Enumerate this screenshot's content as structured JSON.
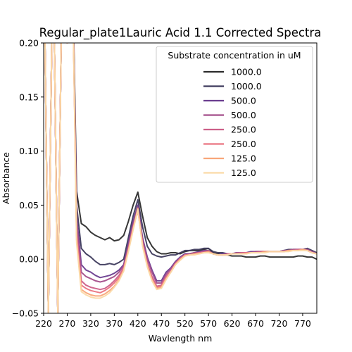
{
  "chart_data": {
    "type": "line",
    "title": "Regular_plate1Lauric Acid 1.1 Corrected Spectra",
    "xlabel": "Wavlength nm",
    "ylabel": "Absorbance",
    "xlim": [
      220,
      800
    ],
    "ylim": [
      -0.05,
      0.2
    ],
    "x_ticks": [
      220,
      270,
      320,
      370,
      420,
      470,
      520,
      570,
      620,
      670,
      720,
      770
    ],
    "y_ticks": [
      -0.05,
      0.0,
      0.05,
      0.1,
      0.15,
      0.2
    ],
    "y_tick_labels": [
      "−0.05",
      "0.00",
      "0.05",
      "0.10",
      "0.15",
      "0.20"
    ],
    "grid": false,
    "legend": {
      "title": "Substrate concentration in uM",
      "placement": "top-right"
    },
    "shared_x": [
      220,
      230,
      240,
      250,
      260,
      270,
      280,
      290,
      300,
      310,
      320,
      330,
      340,
      350,
      360,
      370,
      380,
      390,
      400,
      410,
      420,
      430,
      440,
      450,
      460,
      470,
      480,
      490,
      500,
      510,
      520,
      530,
      540,
      550,
      560,
      570,
      580,
      590,
      600,
      610,
      620,
      630,
      640,
      650,
      660,
      670,
      680,
      690,
      700,
      710,
      720,
      730,
      740,
      750,
      760,
      770,
      780,
      790,
      800
    ],
    "series": [
      {
        "name": "1000.0",
        "color": "#2b2b2b",
        "values": [
          0.3,
          -0.05,
          0.3,
          -0.05,
          0.3,
          0.2,
          0.3,
          0.063,
          0.033,
          0.03,
          0.025,
          0.022,
          0.02,
          0.018,
          0.02,
          0.017,
          0.018,
          0.022,
          0.035,
          0.05,
          0.062,
          0.04,
          0.02,
          0.012,
          0.007,
          0.005,
          0.005,
          0.006,
          0.006,
          0.005,
          0.007,
          0.008,
          0.008,
          0.008,
          0.009,
          0.01,
          0.006,
          0.005,
          0.004,
          0.004,
          0.003,
          0.003,
          0.003,
          0.002,
          0.002,
          0.002,
          0.003,
          0.003,
          0.002,
          0.002,
          0.002,
          0.002,
          0.002,
          0.002,
          0.003,
          0.003,
          0.002,
          0.002,
          0.0
        ]
      },
      {
        "name": "1000.0",
        "color": "#3d3a5c",
        "values": [
          0.3,
          -0.05,
          0.3,
          -0.05,
          0.3,
          0.2,
          0.3,
          0.05,
          0.01,
          0.005,
          0.002,
          -0.002,
          -0.005,
          -0.005,
          -0.004,
          -0.005,
          -0.003,
          0.0,
          0.02,
          0.04,
          0.055,
          0.03,
          0.012,
          0.005,
          0.003,
          0.002,
          0.003,
          0.004,
          0.004,
          0.006,
          0.008,
          0.008,
          0.009,
          0.009,
          0.01,
          0.01,
          0.007,
          0.006,
          0.006,
          0.005,
          0.005,
          0.006,
          0.006,
          0.006,
          0.006,
          0.007,
          0.007,
          0.007,
          0.007,
          0.007,
          0.007,
          0.008,
          0.009,
          0.009,
          0.009,
          0.009,
          0.01,
          0.008,
          0.006
        ]
      },
      {
        "name": "500.0",
        "color": "#6a3d8f",
        "values": [
          0.3,
          -0.05,
          0.3,
          -0.05,
          0.3,
          0.2,
          0.3,
          0.04,
          -0.005,
          -0.01,
          -0.012,
          -0.015,
          -0.017,
          -0.016,
          -0.015,
          -0.013,
          -0.01,
          -0.005,
          0.015,
          0.035,
          0.05,
          0.02,
          0.002,
          -0.01,
          -0.02,
          -0.02,
          -0.012,
          -0.008,
          -0.002,
          0.002,
          0.005,
          0.005,
          0.006,
          0.007,
          0.008,
          0.008,
          0.005,
          0.004,
          0.005,
          0.005,
          0.005,
          0.006,
          0.006,
          0.006,
          0.007,
          0.007,
          0.007,
          0.007,
          0.007,
          0.007,
          0.007,
          0.008,
          0.008,
          0.009,
          0.009,
          0.009,
          0.009,
          0.007,
          0.005
        ]
      },
      {
        "name": "500.0",
        "color": "#a34d8a",
        "values": [
          0.3,
          -0.05,
          0.3,
          -0.05,
          0.3,
          0.2,
          0.3,
          0.035,
          -0.012,
          -0.016,
          -0.018,
          -0.02,
          -0.021,
          -0.02,
          -0.018,
          -0.016,
          -0.012,
          -0.006,
          0.012,
          0.032,
          0.048,
          0.018,
          0.0,
          -0.012,
          -0.022,
          -0.022,
          -0.014,
          -0.009,
          -0.003,
          0.001,
          0.004,
          0.005,
          0.006,
          0.006,
          0.007,
          0.008,
          0.005,
          0.004,
          0.004,
          0.005,
          0.005,
          0.006,
          0.006,
          0.006,
          0.006,
          0.007,
          0.007,
          0.007,
          0.007,
          0.007,
          0.007,
          0.008,
          0.008,
          0.009,
          0.009,
          0.009,
          0.009,
          0.007,
          0.005
        ]
      },
      {
        "name": "250.0",
        "color": "#cc5f89",
        "values": [
          0.3,
          -0.05,
          0.3,
          -0.05,
          0.3,
          0.2,
          0.3,
          0.025,
          -0.02,
          -0.024,
          -0.026,
          -0.027,
          -0.028,
          -0.027,
          -0.024,
          -0.02,
          -0.015,
          -0.008,
          0.01,
          0.03,
          0.046,
          0.015,
          -0.004,
          -0.016,
          -0.025,
          -0.024,
          -0.016,
          -0.011,
          -0.004,
          0.001,
          0.004,
          0.004,
          0.005,
          0.006,
          0.007,
          0.007,
          0.005,
          0.004,
          0.004,
          0.005,
          0.005,
          0.005,
          0.006,
          0.006,
          0.006,
          0.006,
          0.007,
          0.007,
          0.007,
          0.007,
          0.007,
          0.007,
          0.008,
          0.008,
          0.009,
          0.009,
          0.008,
          0.006,
          0.005
        ]
      },
      {
        "name": "250.0",
        "color": "#ea7380",
        "values": [
          0.3,
          -0.05,
          0.3,
          -0.05,
          0.3,
          0.2,
          0.3,
          0.022,
          -0.024,
          -0.027,
          -0.029,
          -0.03,
          -0.031,
          -0.029,
          -0.026,
          -0.022,
          -0.017,
          -0.009,
          0.009,
          0.029,
          0.045,
          0.014,
          -0.005,
          -0.018,
          -0.026,
          -0.025,
          -0.017,
          -0.011,
          -0.004,
          0.0,
          0.004,
          0.004,
          0.005,
          0.006,
          0.006,
          0.007,
          0.005,
          0.004,
          0.004,
          0.004,
          0.005,
          0.005,
          0.005,
          0.006,
          0.006,
          0.006,
          0.006,
          0.007,
          0.007,
          0.007,
          0.007,
          0.007,
          0.008,
          0.008,
          0.008,
          0.009,
          0.008,
          0.006,
          0.005
        ]
      },
      {
        "name": "125.0",
        "color": "#f9a679",
        "values": [
          0.3,
          -0.05,
          0.3,
          -0.05,
          0.3,
          0.2,
          0.3,
          0.018,
          -0.028,
          -0.031,
          -0.033,
          -0.034,
          -0.034,
          -0.032,
          -0.029,
          -0.025,
          -0.019,
          -0.01,
          0.008,
          0.028,
          0.047,
          0.013,
          -0.006,
          -0.019,
          -0.027,
          -0.026,
          -0.018,
          -0.012,
          -0.005,
          0.0,
          0.003,
          0.004,
          0.005,
          0.005,
          0.006,
          0.007,
          0.005,
          0.004,
          0.004,
          0.004,
          0.005,
          0.005,
          0.005,
          0.005,
          0.006,
          0.006,
          0.006,
          0.007,
          0.007,
          0.007,
          0.007,
          0.007,
          0.008,
          0.008,
          0.008,
          0.009,
          0.008,
          0.006,
          0.005
        ]
      },
      {
        "name": "125.0",
        "color": "#fbd9a6",
        "values": [
          0.3,
          -0.05,
          0.3,
          -0.05,
          0.3,
          0.2,
          0.3,
          0.015,
          -0.03,
          -0.033,
          -0.035,
          -0.036,
          -0.036,
          -0.034,
          -0.031,
          -0.026,
          -0.02,
          -0.011,
          0.007,
          0.027,
          0.046,
          0.012,
          -0.007,
          -0.02,
          -0.028,
          -0.027,
          -0.019,
          -0.012,
          -0.005,
          -0.001,
          0.003,
          0.004,
          0.004,
          0.005,
          0.006,
          0.006,
          0.005,
          0.004,
          0.004,
          0.004,
          0.005,
          0.005,
          0.005,
          0.005,
          0.006,
          0.006,
          0.006,
          0.006,
          0.007,
          0.007,
          0.007,
          0.007,
          0.007,
          0.008,
          0.008,
          0.008,
          0.008,
          0.006,
          0.005
        ]
      }
    ]
  }
}
